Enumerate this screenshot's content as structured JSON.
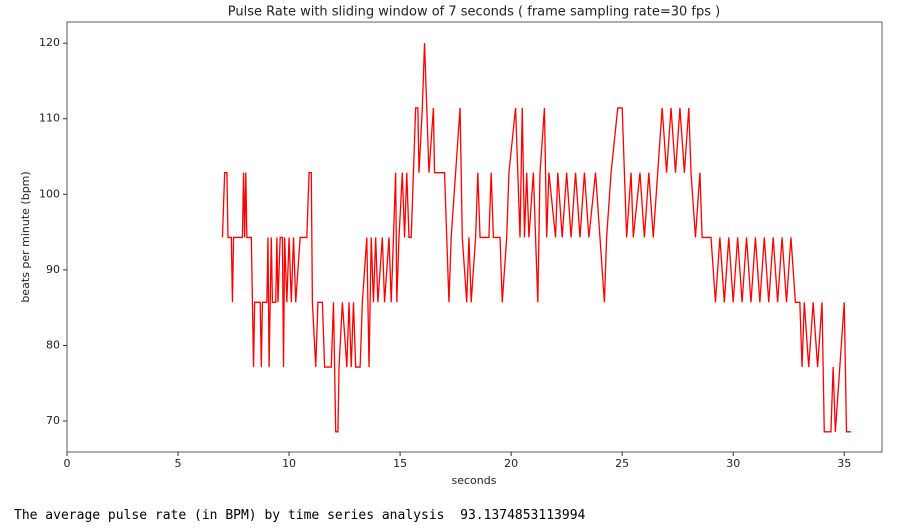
{
  "chart_data": {
    "type": "line",
    "title": "Pulse Rate with sliding window of 7 seconds  ( frame sampling rate=30 fps )",
    "x_label": "seconds",
    "y_label": "beats per minute (bpm)",
    "xlim": [
      0,
      36.7
    ],
    "ylim": [
      65.9,
      122.8
    ],
    "xticks": [
      0,
      5,
      10,
      15,
      20,
      25,
      30,
      35
    ],
    "yticks": [
      70,
      80,
      90,
      100,
      110,
      120
    ],
    "grid": false,
    "series": [
      {
        "color": "#ff0000",
        "x": [
          7.0,
          7.1,
          7.2,
          7.25,
          7.4,
          7.45,
          7.5,
          7.9,
          7.95,
          8.0,
          8.05,
          8.1,
          8.3,
          8.35,
          8.4,
          8.45,
          8.7,
          8.75,
          8.8,
          9.0,
          9.05,
          9.1,
          9.2,
          9.25,
          9.4,
          9.45,
          9.5,
          9.6,
          9.7,
          9.75,
          9.8,
          9.9,
          10.0,
          10.1,
          10.2,
          10.3,
          10.5,
          10.8,
          10.9,
          11.0,
          11.05,
          11.2,
          11.3,
          11.5,
          11.6,
          11.9,
          12.0,
          12.1,
          12.2,
          12.25,
          12.4,
          12.6,
          12.7,
          12.8,
          12.9,
          13.0,
          13.2,
          13.3,
          13.5,
          13.6,
          13.7,
          13.8,
          13.9,
          14.0,
          14.2,
          14.3,
          14.5,
          14.6,
          14.8,
          14.85,
          14.95,
          15.1,
          15.2,
          15.3,
          15.4,
          15.5,
          15.6,
          15.7,
          15.8,
          15.85,
          16.0,
          16.1,
          16.2,
          16.3,
          16.5,
          16.55,
          17.0,
          17.1,
          17.2,
          17.3,
          17.5,
          17.7,
          17.75,
          17.8,
          18.0,
          18.1,
          18.2,
          18.4,
          18.5,
          18.6,
          19.0,
          19.1,
          19.2,
          19.5,
          19.6,
          19.8,
          19.9,
          20.2,
          20.3,
          20.4,
          20.5,
          20.6,
          20.7,
          20.8,
          21.0,
          21.2,
          21.3,
          21.5,
          21.6,
          21.7,
          22.0,
          22.1,
          22.3,
          22.5,
          22.7,
          22.9,
          23.1,
          23.3,
          23.5,
          23.8,
          24.0,
          24.2,
          24.3,
          24.5,
          24.8,
          25.0,
          25.1,
          25.2,
          25.4,
          25.5,
          25.8,
          26.0,
          26.2,
          26.4,
          26.6,
          26.8,
          27.0,
          27.2,
          27.4,
          27.6,
          27.8,
          28.0,
          28.1,
          28.3,
          28.5,
          28.6,
          29.0,
          29.2,
          29.4,
          29.6,
          29.8,
          30.0,
          30.2,
          30.4,
          30.6,
          30.8,
          31.0,
          31.2,
          31.4,
          31.6,
          31.8,
          32.0,
          32.2,
          32.4,
          32.6,
          32.8,
          33.0,
          33.1,
          33.2,
          33.4,
          33.6,
          33.8,
          34.0,
          34.1,
          34.4,
          34.5,
          34.6,
          34.8,
          35.0,
          35.1,
          35.3
        ],
        "values": [
          94.29,
          102.86,
          102.86,
          94.29,
          94.29,
          85.71,
          94.29,
          94.29,
          102.86,
          94.29,
          102.86,
          94.29,
          94.29,
          85.71,
          77.14,
          85.71,
          85.71,
          77.14,
          85.71,
          85.71,
          94.29,
          77.14,
          94.29,
          85.71,
          85.71,
          94.29,
          85.71,
          94.29,
          94.29,
          77.14,
          94.29,
          85.71,
          94.29,
          85.71,
          94.29,
          85.71,
          94.29,
          94.29,
          102.86,
          102.86,
          85.71,
          77.14,
          85.71,
          85.71,
          77.14,
          77.14,
          85.71,
          68.57,
          68.57,
          77.14,
          85.71,
          77.14,
          85.71,
          77.14,
          85.71,
          77.14,
          77.14,
          85.71,
          94.29,
          77.14,
          94.29,
          85.71,
          94.29,
          85.71,
          94.29,
          85.71,
          94.29,
          85.71,
          102.86,
          85.71,
          94.29,
          102.86,
          94.29,
          102.86,
          94.29,
          94.29,
          102.86,
          111.43,
          111.43,
          102.86,
          111.43,
          120,
          111.43,
          102.86,
          111.43,
          102.86,
          102.86,
          94.29,
          85.71,
          94.29,
          102.86,
          111.43,
          102.86,
          94.29,
          85.71,
          94.29,
          85.71,
          94.29,
          102.86,
          94.29,
          94.29,
          102.86,
          94.29,
          94.29,
          85.71,
          94.29,
          102.86,
          111.43,
          102.86,
          94.29,
          111.43,
          94.29,
          102.86,
          94.29,
          102.86,
          85.71,
          102.86,
          111.43,
          94.29,
          102.86,
          94.29,
          102.86,
          94.29,
          102.86,
          94.29,
          102.86,
          94.29,
          102.86,
          94.29,
          102.86,
          94.29,
          85.71,
          94.29,
          102.86,
          111.43,
          111.43,
          102.86,
          94.29,
          102.86,
          94.29,
          102.86,
          94.29,
          102.86,
          94.29,
          102.86,
          111.43,
          102.86,
          111.43,
          102.86,
          111.43,
          102.86,
          111.43,
          102.86,
          94.29,
          102.86,
          94.29,
          94.29,
          85.71,
          94.29,
          85.71,
          94.29,
          85.71,
          94.29,
          85.71,
          94.29,
          85.71,
          94.29,
          85.71,
          94.29,
          85.71,
          94.29,
          85.71,
          94.29,
          85.71,
          94.29,
          85.71,
          85.71,
          77.14,
          85.71,
          77.14,
          85.71,
          77.14,
          85.71,
          68.57,
          68.57,
          77.14,
          68.57,
          77.14,
          85.71,
          68.57,
          68.57
        ]
      }
    ]
  },
  "output": {
    "text": "The average pulse rate (in BPM) by time series analysis  93.1374853113994"
  }
}
